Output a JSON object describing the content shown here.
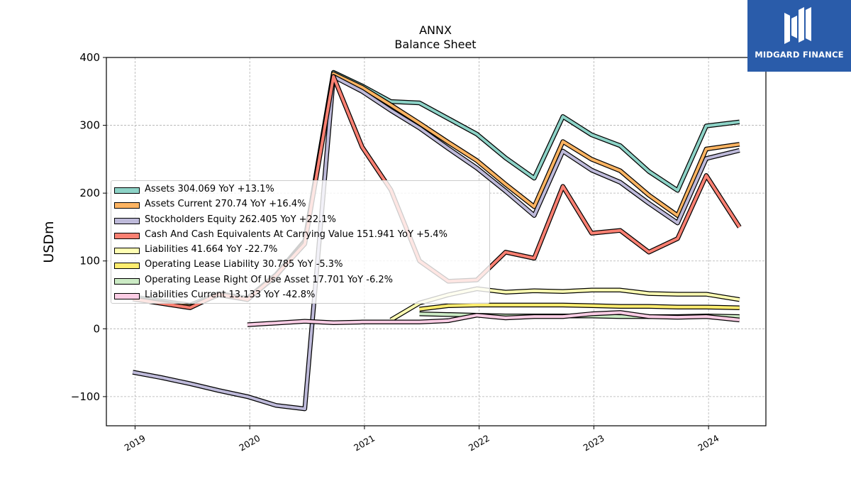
{
  "brand": {
    "name": "MIDGARD FINANCE"
  },
  "chart_data": {
    "type": "line",
    "title": "ANNX",
    "subtitle": "Balance  Sheet",
    "xlabel": "",
    "ylabel": "USDm",
    "xlim": [
      2018.75,
      2024.5
    ],
    "ylim": [
      -143,
      400
    ],
    "yticks": [
      -100,
      0,
      100,
      200,
      300,
      400
    ],
    "ytick_labels": [
      "−100",
      "0",
      "100",
      "200",
      "300",
      "400"
    ],
    "xticks": [
      2019,
      2020,
      2021,
      2022,
      2023,
      2024
    ],
    "xtick_labels": [
      "2019",
      "2020",
      "2021",
      "2022",
      "2023",
      "2024"
    ],
    "grid": true,
    "legend_position": "center-left",
    "series": [
      {
        "name": "Assets",
        "legend": "Assets  304.069 YoY +13.1%",
        "color": "#8dd3c7",
        "points": [
          [
            2018.98,
            47
          ],
          [
            2019.48,
            35
          ],
          [
            2019.73,
            52
          ],
          [
            2019.98,
            45
          ],
          [
            2020.23,
            80
          ],
          [
            2020.48,
            130
          ],
          [
            2020.73,
            378
          ],
          [
            2020.98,
            358
          ],
          [
            2021.23,
            335
          ],
          [
            2021.48,
            333
          ],
          [
            2021.73,
            310
          ],
          [
            2021.98,
            287
          ],
          [
            2022.23,
            252
          ],
          [
            2022.48,
            222
          ],
          [
            2022.73,
            313
          ],
          [
            2022.98,
            286
          ],
          [
            2023.23,
            270
          ],
          [
            2023.48,
            232
          ],
          [
            2023.73,
            204
          ],
          [
            2023.98,
            299
          ],
          [
            2024.27,
            305
          ]
        ]
      },
      {
        "name": "Assets Current",
        "legend": "Assets Current  270.74 YoY +16.4%",
        "color": "#fdb462",
        "points": [
          [
            2018.98,
            45
          ],
          [
            2019.48,
            33
          ],
          [
            2019.73,
            50
          ],
          [
            2019.98,
            43
          ],
          [
            2020.23,
            78
          ],
          [
            2020.48,
            128
          ],
          [
            2020.73,
            376
          ],
          [
            2020.98,
            356
          ],
          [
            2021.23,
            330
          ],
          [
            2021.48,
            303
          ],
          [
            2021.73,
            275
          ],
          [
            2021.98,
            248
          ],
          [
            2022.23,
            213
          ],
          [
            2022.48,
            180
          ],
          [
            2022.73,
            276
          ],
          [
            2022.98,
            250
          ],
          [
            2023.23,
            233
          ],
          [
            2023.48,
            197
          ],
          [
            2023.73,
            167
          ],
          [
            2023.98,
            265
          ],
          [
            2024.27,
            272
          ]
        ]
      },
      {
        "name": "Stockholders Equity",
        "legend": "Stockholders Equity  262.405 YoY +22.1%",
        "color": "#bebada",
        "points": [
          [
            2018.98,
            -64
          ],
          [
            2019.23,
            -72
          ],
          [
            2019.48,
            -81
          ],
          [
            2019.73,
            -91
          ],
          [
            2019.98,
            -100
          ],
          [
            2020.23,
            -113
          ],
          [
            2020.48,
            -118
          ],
          [
            2020.73,
            372
          ],
          [
            2020.98,
            350
          ],
          [
            2021.23,
            322
          ],
          [
            2021.48,
            296
          ],
          [
            2021.73,
            266
          ],
          [
            2021.98,
            237
          ],
          [
            2022.23,
            203
          ],
          [
            2022.48,
            167
          ],
          [
            2022.73,
            262
          ],
          [
            2022.98,
            234
          ],
          [
            2023.23,
            216
          ],
          [
            2023.48,
            185
          ],
          [
            2023.73,
            156
          ],
          [
            2023.98,
            251
          ],
          [
            2024.27,
            263
          ]
        ]
      },
      {
        "name": "Cash And Cash Equivalents At Carrying Value",
        "legend": "Cash And Cash Equivalents At Carrying Value  151.941 YoY +5.4%",
        "color": "#fb8072",
        "points": [
          [
            2018.98,
            44
          ],
          [
            2019.48,
            31
          ],
          [
            2019.73,
            51
          ],
          [
            2019.98,
            43
          ],
          [
            2020.23,
            79
          ],
          [
            2020.48,
            125
          ],
          [
            2020.73,
            372
          ],
          [
            2020.98,
            268
          ],
          [
            2021.23,
            205
          ],
          [
            2021.48,
            100
          ],
          [
            2021.73,
            70
          ],
          [
            2021.98,
            72
          ],
          [
            2022.23,
            113
          ],
          [
            2022.48,
            104
          ],
          [
            2022.73,
            210
          ],
          [
            2022.98,
            141
          ],
          [
            2023.23,
            145
          ],
          [
            2023.48,
            113
          ],
          [
            2023.73,
            133
          ],
          [
            2023.98,
            226
          ],
          [
            2024.27,
            150
          ]
        ]
      },
      {
        "name": "Liabilities",
        "legend": "Liabilities  41.664 YoY -22.7%",
        "color": "#ffffb3",
        "points": [
          [
            2021.23,
            13
          ],
          [
            2021.48,
            38
          ],
          [
            2021.73,
            50
          ],
          [
            2021.98,
            59
          ],
          [
            2022.23,
            54
          ],
          [
            2022.48,
            56
          ],
          [
            2022.73,
            55
          ],
          [
            2022.98,
            57
          ],
          [
            2023.23,
            57
          ],
          [
            2023.48,
            52
          ],
          [
            2023.73,
            51
          ],
          [
            2023.98,
            51
          ],
          [
            2024.27,
            43
          ]
        ]
      },
      {
        "name": "Operating Lease Liability",
        "legend": "Operating Lease Liability  30.785 YoY -5.3%",
        "color": "#ffed6f",
        "points": [
          [
            2021.48,
            29
          ],
          [
            2021.73,
            34
          ],
          [
            2021.98,
            35
          ],
          [
            2022.23,
            35
          ],
          [
            2022.48,
            35
          ],
          [
            2022.73,
            35
          ],
          [
            2022.98,
            34
          ],
          [
            2023.23,
            33
          ],
          [
            2023.48,
            33
          ],
          [
            2023.73,
            32
          ],
          [
            2023.98,
            32
          ],
          [
            2024.27,
            31
          ]
        ]
      },
      {
        "name": "Operating Lease Right Of Use Asset",
        "legend": "Operating Lease Right Of Use Asset  17.701 YoY -6.2%",
        "color": "#ccebc5",
        "points": [
          [
            2021.48,
            22
          ],
          [
            2021.73,
            21
          ],
          [
            2021.98,
            20
          ],
          [
            2022.23,
            19
          ],
          [
            2022.48,
            19
          ],
          [
            2022.73,
            19
          ],
          [
            2022.98,
            19
          ],
          [
            2023.23,
            18
          ],
          [
            2023.48,
            18
          ],
          [
            2023.73,
            18
          ],
          [
            2023.98,
            19
          ],
          [
            2024.27,
            18
          ]
        ]
      },
      {
        "name": "Liabilities Current",
        "legend": "Liabilities Current  13.133 YoY -42.8%",
        "color": "#fccde5",
        "points": [
          [
            2019.98,
            6
          ],
          [
            2020.48,
            11
          ],
          [
            2020.73,
            9
          ],
          [
            2020.98,
            10
          ],
          [
            2021.23,
            10
          ],
          [
            2021.48,
            10
          ],
          [
            2021.73,
            12
          ],
          [
            2021.98,
            20
          ],
          [
            2022.23,
            16
          ],
          [
            2022.48,
            18
          ],
          [
            2022.73,
            18
          ],
          [
            2022.98,
            22
          ],
          [
            2023.23,
            24
          ],
          [
            2023.48,
            18
          ],
          [
            2023.73,
            17
          ],
          [
            2023.98,
            18
          ],
          [
            2024.27,
            13
          ]
        ]
      }
    ]
  }
}
